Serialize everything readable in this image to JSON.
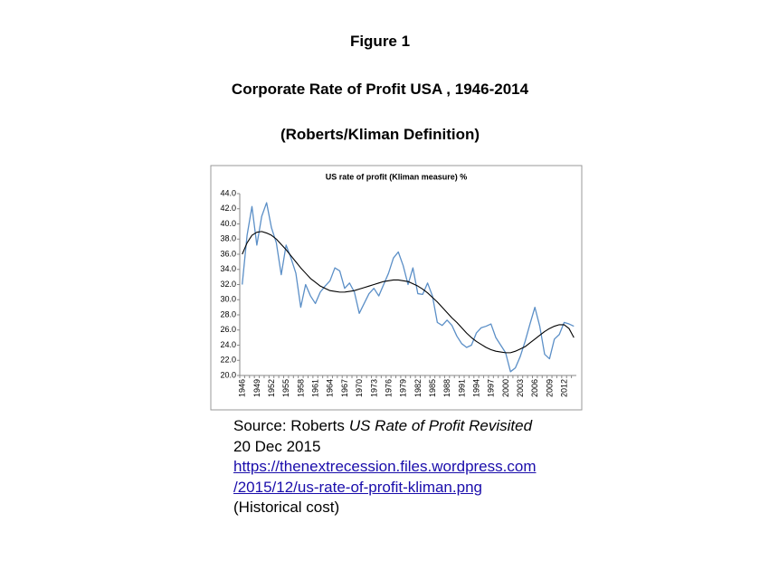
{
  "figure_label": "Figure 1",
  "heading": "Corporate Rate of Profit USA , 1946-2014",
  "subheading": "(Roberts/Kliman Definition)",
  "chart_data": {
    "type": "line",
    "title": "US rate of profit (Kliman measure) %",
    "categories": [
      "1946",
      null,
      null,
      "1949",
      null,
      null,
      "1952",
      null,
      null,
      "1955",
      null,
      null,
      "1958",
      null,
      null,
      "1961",
      null,
      null,
      "1964",
      null,
      null,
      "1967",
      null,
      null,
      "1970",
      null,
      null,
      "1973",
      null,
      null,
      "1976",
      null,
      null,
      "1979",
      null,
      null,
      "1982",
      null,
      null,
      "1985",
      null,
      null,
      "1988",
      null,
      null,
      "1991",
      null,
      null,
      "1994",
      null,
      null,
      "1997",
      null,
      null,
      "2000",
      null,
      null,
      "2003",
      null,
      null,
      "2006",
      null,
      null,
      "2009",
      null,
      null,
      "2012",
      null,
      null
    ],
    "series": [
      {
        "color": "#5b8fc7",
        "values": [
          32.0,
          38.5,
          42.3,
          37.2,
          41.0,
          42.8,
          39.5,
          37.5,
          33.3,
          37.2,
          35.5,
          33.5,
          29.0,
          32.0,
          30.5,
          29.5,
          31.0,
          31.8,
          32.5,
          34.2,
          33.8,
          31.5,
          32.2,
          31.0,
          28.2,
          29.5,
          30.8,
          31.5,
          30.5,
          32.0,
          33.5,
          35.5,
          36.3,
          34.5,
          32.0,
          34.2,
          30.8,
          30.7,
          32.2,
          30.5,
          27.0,
          26.6,
          27.3,
          26.6,
          25.2,
          24.2,
          23.7,
          24.0,
          25.6,
          26.3,
          26.5,
          26.8,
          25.0,
          24.0,
          23.0,
          20.5,
          21.0,
          22.5,
          24.5,
          26.8,
          29.0,
          26.5,
          22.8,
          22.2,
          24.8,
          25.4,
          27.0,
          26.8,
          26.5
        ]
      },
      {
        "color": "#000000",
        "values": [
          36.0,
          37.5,
          38.5,
          38.9,
          39.0,
          38.8,
          38.5,
          38.0,
          37.3,
          36.6,
          35.8,
          35.0,
          34.2,
          33.5,
          32.8,
          32.3,
          31.8,
          31.5,
          31.2,
          31.1,
          31.0,
          31.0,
          31.1,
          31.2,
          31.4,
          31.6,
          31.8,
          32.0,
          32.2,
          32.4,
          32.5,
          32.6,
          32.6,
          32.5,
          32.4,
          32.1,
          31.8,
          31.4,
          30.9,
          30.3,
          29.7,
          29.0,
          28.3,
          27.6,
          27.0,
          26.3,
          25.6,
          25.0,
          24.5,
          24.1,
          23.7,
          23.4,
          23.2,
          23.1,
          23.0,
          23.0,
          23.2,
          23.5,
          23.8,
          24.3,
          24.8,
          25.3,
          25.8,
          26.2,
          26.5,
          26.7,
          26.7,
          26.2,
          25.0
        ]
      }
    ],
    "ylim": [
      20,
      44
    ],
    "yticks": [
      {
        "value": 20,
        "label": "20.0"
      },
      {
        "value": 22,
        "label": "22.0"
      },
      {
        "value": 24,
        "label": "24.0"
      },
      {
        "value": 26,
        "label": "26.0"
      },
      {
        "value": 28,
        "label": "28.0"
      },
      {
        "value": 30,
        "label": "30.0"
      },
      {
        "value": 32,
        "label": "32.0"
      },
      {
        "value": 34,
        "label": "34.0"
      },
      {
        "value": 36,
        "label": "36.0"
      },
      {
        "value": 38,
        "label": "38.0"
      },
      {
        "value": 40,
        "label": "40.0"
      },
      {
        "value": 42,
        "label": "42.0"
      },
      {
        "value": 44,
        "label": "44.0"
      }
    ],
    "grid": false
  },
  "source": {
    "prefix": "Source: Roberts",
    "work": "US Rate of Profit Revisited",
    "date": "20 Dec 2015",
    "link_line1": "https://thenextrecession.files.wordpress.com",
    "link_line2": "/2015/12/us-rate-of-profit-kliman.png",
    "note": "(Historical cost)"
  }
}
